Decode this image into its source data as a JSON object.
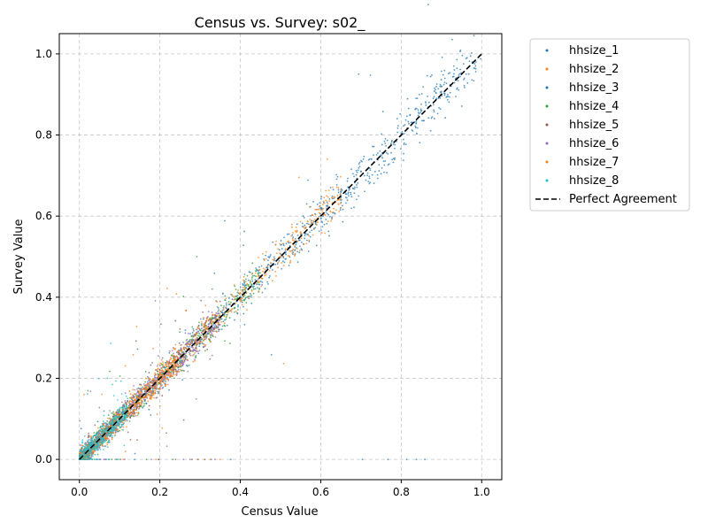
{
  "chart_data": {
    "type": "scatter",
    "title": "Census vs. Survey: s02_",
    "xlabel": "Census Value",
    "ylabel": "Survey Value",
    "xlim": [
      -0.05,
      1.05
    ],
    "ylim": [
      -0.05,
      1.05
    ],
    "xticks": [
      0.0,
      0.2,
      0.4,
      0.6,
      0.8,
      1.0
    ],
    "yticks": [
      0.0,
      0.2,
      0.4,
      0.6,
      0.8,
      1.0
    ],
    "xtick_labels": [
      "0.0",
      "0.2",
      "0.4",
      "0.6",
      "0.8",
      "1.0"
    ],
    "ytick_labels": [
      "0.0",
      "0.2",
      "0.4",
      "0.6",
      "0.8",
      "1.0"
    ],
    "grid": true,
    "legend_position": "outside-right-top",
    "series": [
      {
        "name": "hhsize_1",
        "color": "#1f77b4",
        "x_range": [
          0.0,
          1.0
        ],
        "approx_points": [
          [
            0.65,
            0.66
          ],
          [
            0.7,
            0.71
          ],
          [
            0.75,
            0.75
          ],
          [
            0.8,
            0.8
          ],
          [
            0.85,
            0.86
          ],
          [
            0.9,
            0.92
          ],
          [
            0.6,
            0.62
          ]
        ]
      },
      {
        "name": "hhsize_2",
        "color": "#ff7f0e",
        "x_range": [
          0.0,
          0.65
        ],
        "approx_points": [
          [
            0.4,
            0.41
          ],
          [
            0.45,
            0.45
          ],
          [
            0.5,
            0.5
          ],
          [
            0.55,
            0.56
          ],
          [
            0.35,
            0.35
          ],
          [
            0.6,
            0.6
          ]
        ]
      },
      {
        "name": "hhsize_3",
        "color": "#1f77b4",
        "x_range": [
          0.0,
          0.95
        ],
        "approx_points": [
          [
            0.28,
            0.29
          ],
          [
            0.32,
            0.31
          ],
          [
            0.36,
            0.36
          ],
          [
            0.4,
            0.4
          ]
        ]
      },
      {
        "name": "hhsize_4",
        "color": "#2ca02c",
        "x_range": [
          0.0,
          0.45
        ],
        "approx_points": [
          [
            0.15,
            0.15
          ],
          [
            0.2,
            0.2
          ],
          [
            0.25,
            0.24
          ],
          [
            0.3,
            0.3
          ]
        ]
      },
      {
        "name": "hhsize_5",
        "color": "#8c564b",
        "x_range": [
          0.0,
          0.35
        ],
        "approx_points": [
          [
            0.1,
            0.11
          ],
          [
            0.15,
            0.16
          ],
          [
            0.2,
            0.2
          ],
          [
            0.25,
            0.26
          ]
        ]
      },
      {
        "name": "hhsize_6",
        "color": "#9467bd",
        "x_range": [
          0.0,
          0.35
        ],
        "approx_points": [
          [
            0.15,
            0.16
          ],
          [
            0.2,
            0.21
          ],
          [
            0.25,
            0.25
          ],
          [
            0.3,
            0.3
          ]
        ]
      },
      {
        "name": "hhsize_7",
        "color": "#ff7f0e",
        "x_range": [
          0.0,
          0.25
        ],
        "approx_points": [
          [
            0.05,
            0.05
          ],
          [
            0.1,
            0.1
          ],
          [
            0.15,
            0.15
          ]
        ]
      },
      {
        "name": "hhsize_8",
        "color": "#17becf",
        "x_range": [
          0.0,
          0.12
        ],
        "approx_points": [
          [
            0.02,
            0.03
          ],
          [
            0.04,
            0.04
          ],
          [
            0.06,
            0.05
          ],
          [
            0.08,
            0.08
          ]
        ]
      }
    ],
    "reference_line": {
      "name": "Perfect Agreement",
      "x": [
        0.0,
        1.0
      ],
      "y": [
        0.0,
        1.0
      ],
      "color": "#000000",
      "style": "dashed"
    }
  }
}
